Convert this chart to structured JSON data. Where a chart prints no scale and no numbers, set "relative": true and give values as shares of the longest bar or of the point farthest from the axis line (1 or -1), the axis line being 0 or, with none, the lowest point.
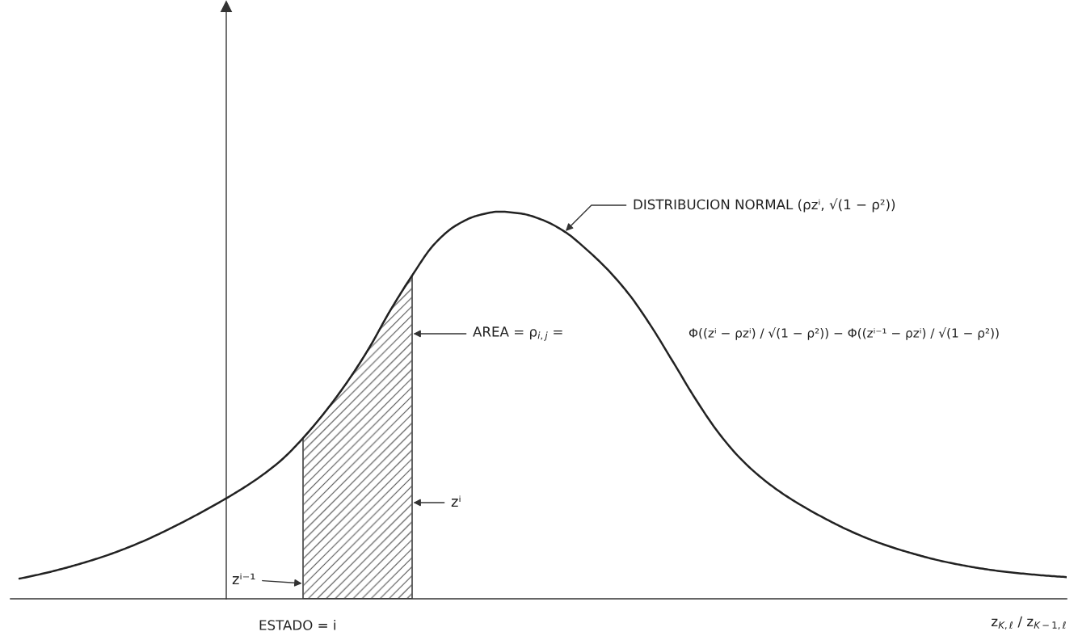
{
  "chart_data": {
    "type": "line",
    "relative": true,
    "tick_labels": false,
    "categories": [
      null,
      null,
      null,
      null,
      null,
      null,
      null,
      null,
      null,
      null,
      null,
      null,
      null,
      null,
      null,
      null,
      null,
      null,
      null,
      null,
      null,
      null,
      null,
      null,
      null,
      null,
      null,
      null,
      null,
      null,
      null,
      null,
      null,
      null,
      null,
      null,
      null,
      null,
      null,
      null,
      null,
      null,
      null,
      null,
      null,
      null,
      null,
      null,
      null
    ],
    "series": [
      {
        "type": "area",
        "color": "#555555",
        "values": [
          null,
          null,
          null,
          null,
          null,
          null,
          null,
          null,
          null,
          null,
          null,
          null,
          null,
          0.415,
          0.482,
          0.558,
          0.645,
          0.745,
          0.835,
          null,
          null,
          null,
          null,
          null,
          null,
          null,
          null,
          null,
          null,
          null,
          null,
          null,
          null,
          null,
          null,
          null,
          null,
          null,
          null,
          null,
          null,
          null,
          null,
          null,
          null,
          null,
          null,
          null,
          null
        ]
      },
      {
        "type": "line",
        "color": "#222222",
        "values": [
          0.052,
          0.064,
          0.078,
          0.094,
          0.112,
          0.133,
          0.157,
          0.184,
          0.213,
          0.244,
          0.277,
          0.314,
          0.358,
          0.415,
          0.482,
          0.558,
          0.645,
          0.745,
          0.835,
          0.915,
          0.964,
          0.99,
          1.0,
          0.995,
          0.978,
          0.948,
          0.902,
          0.848,
          0.782,
          0.7,
          0.608,
          0.515,
          0.432,
          0.365,
          0.313,
          0.271,
          0.236,
          0.205,
          0.177,
          0.153,
          0.133,
          0.116,
          0.101,
          0.089,
          0.079,
          0.071,
          0.065,
          0.06,
          0.056
        ]
      }
    ],
    "xlabel": "z$_{K,ℓ}$ / z$_{K−1,ℓ}$",
    "annotations": [
      "DISTRIBUCION NORMAL (ρzⁱ, √(1 − ρ²))",
      "AREA = ρ$_{i,j}$ =",
      "Φ((zⁱ − ρzⁱ) / √(1 − ρ²)) − Φ((zⁱ⁻¹ − ρzⁱ) / √(1 − ρ²))",
      "zⁱ",
      "zⁱ⁻¹",
      "ESTADO = i"
    ]
  }
}
